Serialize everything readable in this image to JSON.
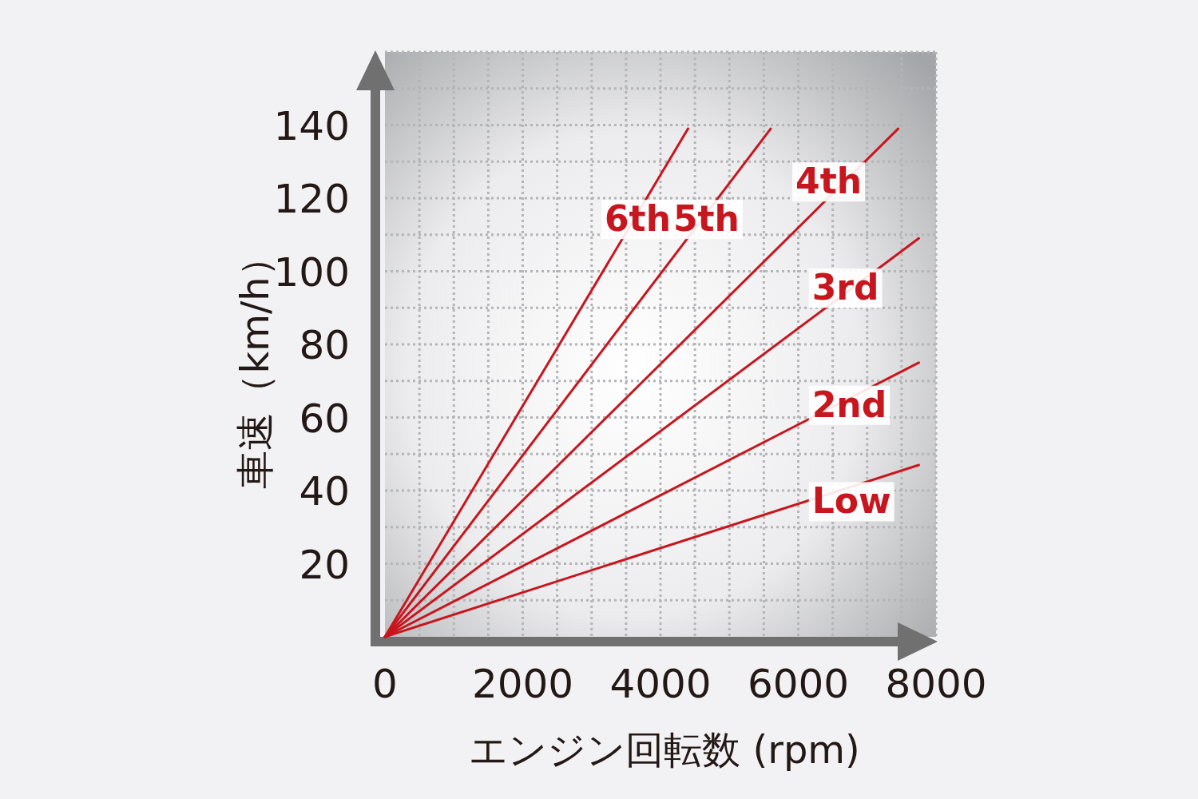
{
  "chart_data": {
    "type": "line",
    "xlabel": "エンジン回転数 (rpm)",
    "ylabel": "車速（km/h）",
    "xlim": [
      0,
      8000
    ],
    "ylim": [
      0,
      160
    ],
    "xticks": [
      0,
      {
        "value": 500,
        "label": null
      },
      {
        "value": 1000,
        "label": null
      },
      {
        "value": 1500,
        "label": null
      },
      2000,
      {
        "value": 2500,
        "label": null
      },
      {
        "value": 3000,
        "label": null
      },
      {
        "value": 3500,
        "label": null
      },
      4000,
      {
        "value": 4500,
        "label": null
      },
      {
        "value": 5000,
        "label": null
      },
      {
        "value": 5500,
        "label": null
      },
      6000,
      {
        "value": 6500,
        "label": null
      },
      {
        "value": 7000,
        "label": null
      },
      {
        "value": 7500,
        "label": null
      },
      8000
    ],
    "yticks": [
      {
        "value": 0,
        "label": null
      },
      {
        "value": 10,
        "label": null
      },
      20,
      {
        "value": 30,
        "label": null
      },
      40,
      {
        "value": 50,
        "label": null
      },
      60,
      {
        "value": 70,
        "label": null
      },
      80,
      {
        "value": 90,
        "label": null
      },
      100,
      {
        "value": 110,
        "label": null
      },
      120,
      {
        "value": 130,
        "label": null
      },
      140,
      {
        "value": 150,
        "label": null
      },
      {
        "value": 160,
        "label": null
      }
    ],
    "grid": true,
    "legend": false,
    "marker": "none",
    "line_style": "solid",
    "series": [
      {
        "name": "6th",
        "color": "#c8161e",
        "x": [
          0,
          4400
        ],
        "values": [
          0,
          139
        ]
      },
      {
        "name": "5th",
        "color": "#c8161e",
        "x": [
          0,
          5600
        ],
        "values": [
          0,
          139
        ]
      },
      {
        "name": "4th",
        "color": "#c8161e",
        "x": [
          0,
          7450
        ],
        "values": [
          0,
          139
        ]
      },
      {
        "name": "3rd",
        "color": "#c8161e",
        "x": [
          0,
          7750
        ],
        "values": [
          0,
          109
        ]
      },
      {
        "name": "2nd",
        "color": "#c8161e",
        "x": [
          0,
          7750
        ],
        "values": [
          0,
          75
        ]
      },
      {
        "name": "Low",
        "color": "#c8161e",
        "x": [
          0,
          7750
        ],
        "values": [
          0,
          47
        ]
      }
    ]
  }
}
